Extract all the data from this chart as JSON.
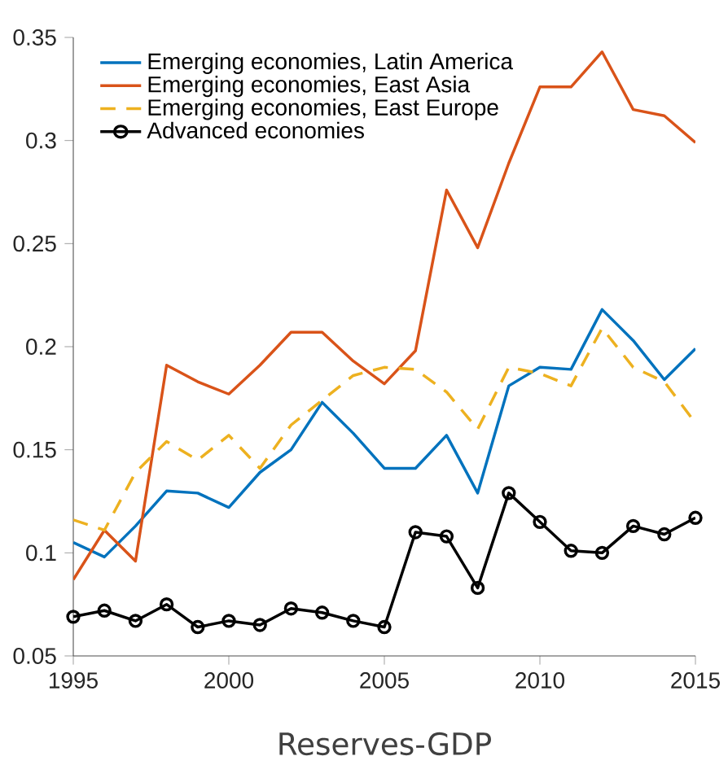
{
  "chart_data": {
    "type": "line",
    "title": "Reserves-GDP",
    "x": [
      1995,
      1996,
      1997,
      1998,
      1999,
      2000,
      2001,
      2002,
      2003,
      2004,
      2005,
      2006,
      2007,
      2008,
      2009,
      2010,
      2011,
      2012,
      2013,
      2014,
      2015
    ],
    "xlim": [
      1995,
      2015
    ],
    "xticks": [
      1995,
      2000,
      2005,
      2010,
      2015
    ],
    "ylim": [
      0.05,
      0.35
    ],
    "yticks": [
      0.05,
      0.1,
      0.15,
      0.2,
      0.25,
      0.3,
      0.35
    ],
    "legend": "top left",
    "series": [
      {
        "name": "Emerging economies, Latin America",
        "color": "#0072bd",
        "line_style": "solid",
        "marker": "none",
        "values": [
          0.105,
          0.098,
          0.113,
          0.13,
          0.129,
          0.122,
          0.139,
          0.15,
          0.173,
          0.158,
          0.141,
          0.141,
          0.157,
          0.129,
          0.181,
          0.19,
          0.189,
          0.218,
          0.203,
          0.184,
          0.199
        ]
      },
      {
        "name": "Emerging economies, East Asia",
        "color": "#d95319",
        "line_style": "solid",
        "marker": "none",
        "values": [
          0.087,
          0.111,
          0.096,
          0.191,
          0.183,
          0.177,
          0.191,
          0.207,
          0.207,
          0.193,
          0.182,
          0.198,
          0.276,
          0.248,
          0.289,
          0.326,
          0.326,
          0.343,
          0.315,
          0.312,
          0.299
        ]
      },
      {
        "name": "Emerging economies, East Europe",
        "color": "#edb120",
        "line_style": "dashed",
        "marker": "none",
        "values": [
          0.116,
          0.111,
          0.139,
          0.154,
          0.145,
          0.157,
          0.141,
          0.162,
          0.174,
          0.186,
          0.19,
          0.189,
          0.178,
          0.16,
          0.19,
          0.187,
          0.181,
          0.209,
          0.19,
          0.183,
          0.163
        ]
      },
      {
        "name": "Advanced economies",
        "color": "#000000",
        "line_style": "solid",
        "marker": "circle",
        "values": [
          0.069,
          0.072,
          0.067,
          0.075,
          0.064,
          0.067,
          0.065,
          0.073,
          0.071,
          0.067,
          0.064,
          0.11,
          0.108,
          0.083,
          0.129,
          0.115,
          0.101,
          0.1,
          0.113,
          0.109,
          0.117
        ]
      }
    ]
  }
}
